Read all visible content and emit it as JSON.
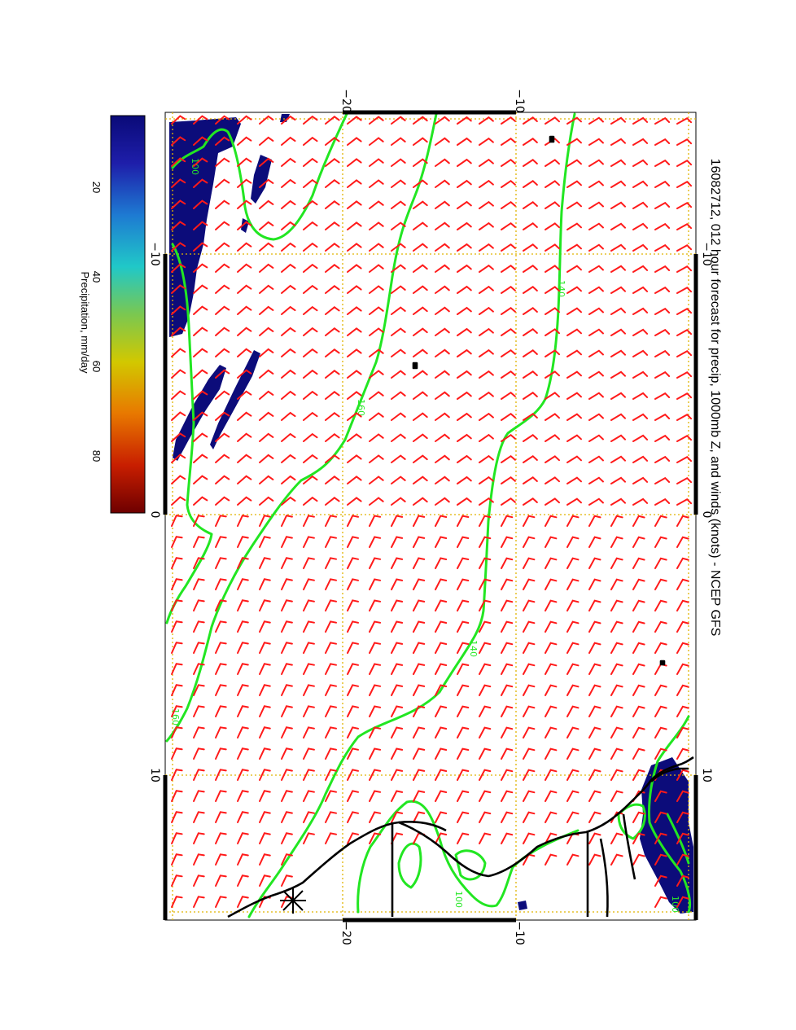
{
  "title": "16082712, 012 hour forecast for precip, 1000mb Z, and winds (knots) - NCEP GFS",
  "colorbar": {
    "label": "Precipitation, mm/day",
    "ticks": [
      "20",
      "40",
      "60",
      "80"
    ],
    "stops": [
      "#6e0000",
      "#c81e00",
      "#e87800",
      "#d2c800",
      "#7ac850",
      "#20c8c8",
      "#1e7ad2",
      "#1e1eaa",
      "#0a0a78"
    ]
  },
  "axes": {
    "top_labels": [
      "−20",
      "−10"
    ],
    "bottom_labels": [
      "−20",
      "−10"
    ],
    "left_labels": [
      "−10",
      "0",
      "10"
    ],
    "right_labels": [
      "−10",
      "0",
      "10"
    ]
  },
  "contour_labels": [
    "140",
    "160",
    "140",
    "160",
    "100",
    "100",
    "100"
  ],
  "colors": {
    "barb": "#ff1a1a",
    "contour": "#22e622",
    "precip": "#0c0c7a",
    "grid": "#e0b400",
    "coast": "#000000"
  }
}
